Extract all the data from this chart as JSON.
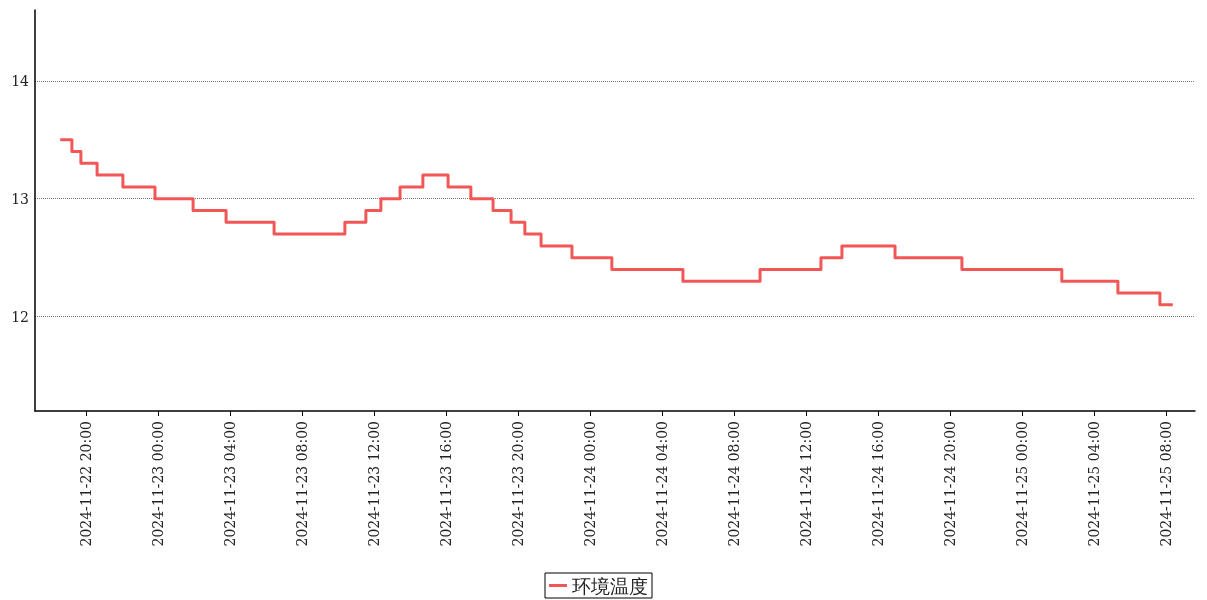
{
  "chart_data": {
    "type": "step",
    "x": [
      "2024-11-22T18:34",
      "2024-11-22T19:13",
      "2024-11-22T19:43",
      "2024-11-22T20:37",
      "2024-11-22T22:03",
      "2024-11-22T23:50",
      "2024-11-23T01:57",
      "2024-11-23T03:47",
      "2024-11-23T06:27",
      "2024-11-23T10:23",
      "2024-11-23T11:33",
      "2024-11-23T12:23",
      "2024-11-23T13:27",
      "2024-11-23T14:43",
      "2024-11-23T16:07",
      "2024-11-23T17:23",
      "2024-11-23T18:37",
      "2024-11-23T19:37",
      "2024-11-23T20:23",
      "2024-11-23T21:17",
      "2024-11-23T23:00",
      "2024-11-24T01:13",
      "2024-11-24T05:10",
      "2024-11-24T09:27",
      "2024-11-24T12:50",
      "2024-11-24T14:00",
      "2024-11-24T16:57",
      "2024-11-24T20:40",
      "2024-11-25T02:13",
      "2024-11-25T05:20",
      "2024-11-25T07:40",
      "2024-11-25T08:23"
    ],
    "series": [
      {
        "name": "环境温度",
        "color": "#f25757",
        "values": [
          13.5,
          13.4,
          13.3,
          13.2,
          13.1,
          13.0,
          12.9,
          12.8,
          12.7,
          12.8,
          12.9,
          13.0,
          13.1,
          13.2,
          13.1,
          13.0,
          12.9,
          12.8,
          12.7,
          12.6,
          12.5,
          12.4,
          12.3,
          12.4,
          12.5,
          12.6,
          12.5,
          12.4,
          12.3,
          12.2,
          12.1,
          12.1
        ]
      }
    ],
    "xlim": [
      "2024-11-22T17:10",
      "2024-11-25T09:37"
    ],
    "xticks": [
      {
        "value": "2024-11-22T20:00",
        "label": "2024-11-22 20:00"
      },
      {
        "value": "2024-11-23T00:00",
        "label": "2024-11-23 00:00"
      },
      {
        "value": "2024-11-23T04:00",
        "label": "2024-11-23 04:00"
      },
      {
        "value": "2024-11-23T08:00",
        "label": "2024-11-23 08:00"
      },
      {
        "value": "2024-11-23T12:00",
        "label": "2024-11-23 12:00"
      },
      {
        "value": "2024-11-23T16:00",
        "label": "2024-11-23 16:00"
      },
      {
        "value": "2024-11-23T20:00",
        "label": "2024-11-23 20:00"
      },
      {
        "value": "2024-11-24T00:00",
        "label": "2024-11-24 00:00"
      },
      {
        "value": "2024-11-24T04:00",
        "label": "2024-11-24 04:00"
      },
      {
        "value": "2024-11-24T08:00",
        "label": "2024-11-24 08:00"
      },
      {
        "value": "2024-11-24T12:00",
        "label": "2024-11-24 12:00"
      },
      {
        "value": "2024-11-24T16:00",
        "label": "2024-11-24 16:00"
      },
      {
        "value": "2024-11-24T20:00",
        "label": "2024-11-24 20:00"
      },
      {
        "value": "2024-11-25T00:00",
        "label": "2024-11-25 00:00"
      },
      {
        "value": "2024-11-25T04:00",
        "label": "2024-11-25 04:00"
      },
      {
        "value": "2024-11-25T08:00",
        "label": "2024-11-25 08:00"
      }
    ],
    "ylim": [
      11.2,
      14.6
    ],
    "yticks": [
      12,
      13,
      14
    ],
    "grid": "y",
    "legend": "bottom",
    "marker": "none",
    "line_style": "solid"
  }
}
